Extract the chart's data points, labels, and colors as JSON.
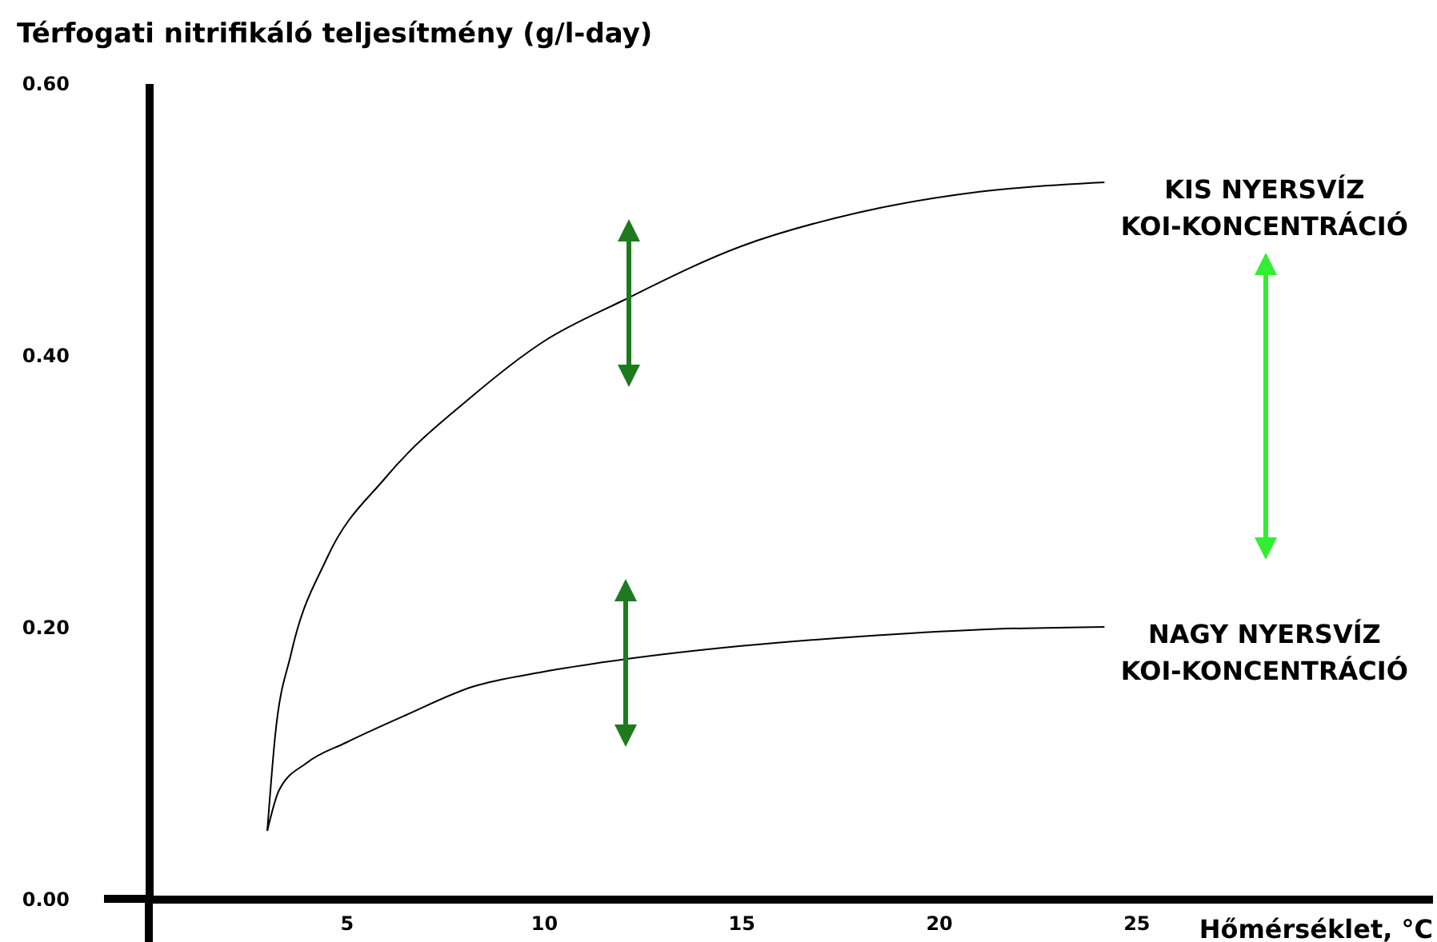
{
  "chart_data": {
    "type": "line",
    "ylabel": "Térfogati nitrifikáló teljesítmény (g/l-day)",
    "xlabel": "Hőmérséklet, °C",
    "xlim": [
      0,
      32.5
    ],
    "ylim": [
      0,
      0.6
    ],
    "xticks": [
      5,
      10,
      15,
      20,
      25
    ],
    "yticks": [
      {
        "value": 0,
        "label": "0.00"
      },
      {
        "value": 0.2,
        "label": "0.20"
      },
      {
        "value": 0.4,
        "label": "0.40"
      },
      {
        "value": 0.6,
        "label": "0.60"
      }
    ],
    "series": [
      {
        "name": "KIS NYERSVÍZ\nKOI-KONCENTRÁCIÓ",
        "color": "#000000",
        "x": [
          3,
          3.2,
          3.6,
          4.5,
          6,
          8.2,
          10,
          12,
          15,
          18,
          21,
          24.2
        ],
        "values": [
          0.05,
          0.12,
          0.18,
          0.25,
          0.31,
          0.37,
          0.41,
          0.44,
          0.48,
          0.505,
          0.52,
          0.527
        ]
      },
      {
        "name": "NAGY NYERSVÍZ\nKOI-KONCENTRÁCIÓ",
        "color": "#000000",
        "x": [
          3,
          3.3,
          4,
          5,
          6.5,
          8.2,
          10,
          12,
          15,
          18,
          21,
          24.2
        ],
        "values": [
          0.05,
          0.08,
          0.1,
          0.115,
          0.135,
          0.156,
          0.167,
          0.176,
          0.186,
          0.193,
          0.198,
          0.2
        ]
      }
    ],
    "legend": false,
    "grid": false,
    "marker": "none",
    "line_style": "solid"
  }
}
